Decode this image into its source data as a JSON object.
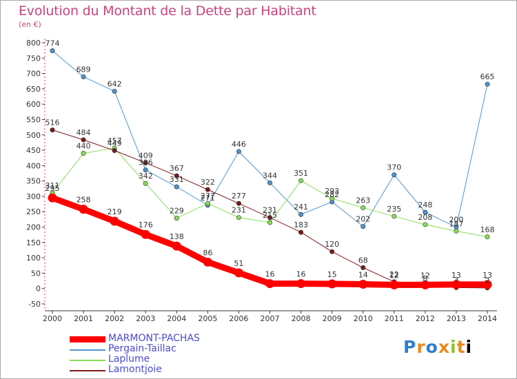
{
  "title": "Evolution du Montant de la Dette par Habitant",
  "unit": "(en €)",
  "logo_text": "Proxiti",
  "chart_data": {
    "type": "line",
    "title": "Evolution du Montant de la Dette par Habitant",
    "ylabel": "(en €)",
    "xlabel": "",
    "x": [
      "2000",
      "2001",
      "2002",
      "2003",
      "2004",
      "2005",
      "2006",
      "2007",
      "2008",
      "2009",
      "2010",
      "2011",
      "2012",
      "2013",
      "2014"
    ],
    "ylim": [
      -50,
      800
    ],
    "yticks": [
      -50,
      0,
      50,
      100,
      150,
      200,
      250,
      300,
      350,
      400,
      450,
      500,
      550,
      600,
      650,
      700,
      750,
      800
    ],
    "grid": false,
    "legend_position": "bottom",
    "series": [
      {
        "name": "MARMONT-PACHAS",
        "color": "#ff0000",
        "values": [
          295,
          258,
          219,
          176,
          138,
          86,
          51,
          16,
          16,
          15,
          14,
          12,
          12,
          13,
          13
        ]
      },
      {
        "name": "Pergain-Taillac",
        "color": "#4d94d0",
        "values": [
          774,
          689,
          642,
          386,
          331,
          271,
          446,
          344,
          241,
          282,
          202,
          370,
          248,
          200,
          665
        ]
      },
      {
        "name": "Laplume",
        "color": "#88dd55",
        "values": [
          311,
          440,
          457,
          342,
          229,
          277,
          231,
          215,
          351,
          293,
          263,
          235,
          208,
          187,
          168
        ]
      },
      {
        "name": "Lamontjoie",
        "color": "#7a1a1a",
        "values": [
          516,
          484,
          449,
          409,
          367,
          322,
          277,
          231,
          183,
          120,
          68,
          22,
          8,
          3,
          2
        ]
      }
    ]
  }
}
